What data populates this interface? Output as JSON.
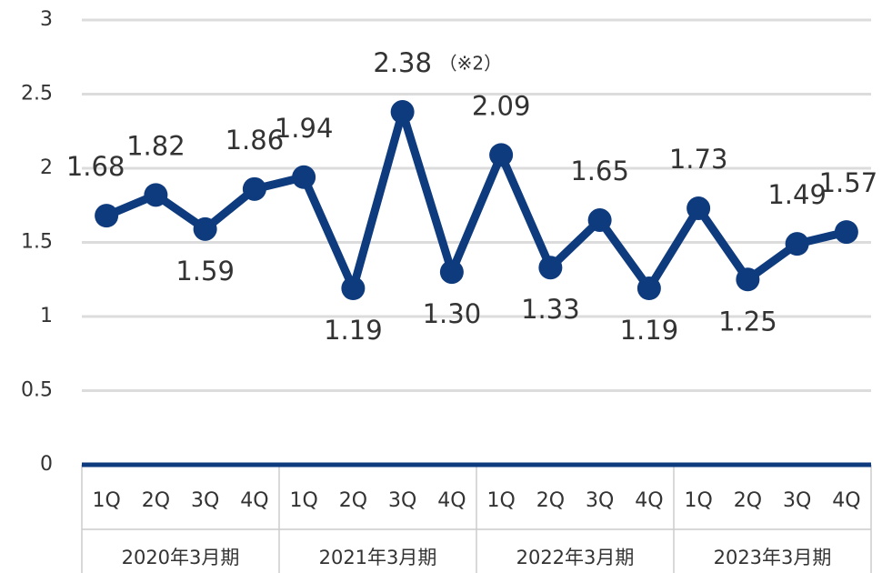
{
  "chart_data": {
    "type": "line",
    "categories": [
      "1Q",
      "2Q",
      "3Q",
      "4Q",
      "1Q",
      "2Q",
      "3Q",
      "4Q",
      "1Q",
      "2Q",
      "3Q",
      "4Q",
      "1Q",
      "2Q",
      "3Q",
      "4Q"
    ],
    "groups": [
      "2020年3月期",
      "2021年3月期",
      "2022年3月期",
      "2023年3月期"
    ],
    "series": [
      {
        "color": "#0e3a7e",
        "values": [
          1.68,
          1.82,
          1.59,
          1.86,
          1.94,
          1.19,
          2.38,
          1.3,
          2.09,
          1.33,
          1.65,
          1.19,
          1.73,
          1.25,
          1.49,
          1.57
        ],
        "value_labels": [
          "1.68",
          "1.82",
          "1.59",
          "1.86",
          "1.94",
          "1.19",
          "2.38",
          "1.30",
          "2.09",
          "1.33",
          "1.65",
          "1.19",
          "1.73",
          "1.25",
          "1.49",
          "1.57"
        ]
      }
    ],
    "annotation": "（※2）",
    "ylim": [
      0,
      3
    ],
    "yticks": [
      0,
      0.5,
      1,
      1.5,
      2,
      2.5,
      3
    ],
    "grid": true
  }
}
